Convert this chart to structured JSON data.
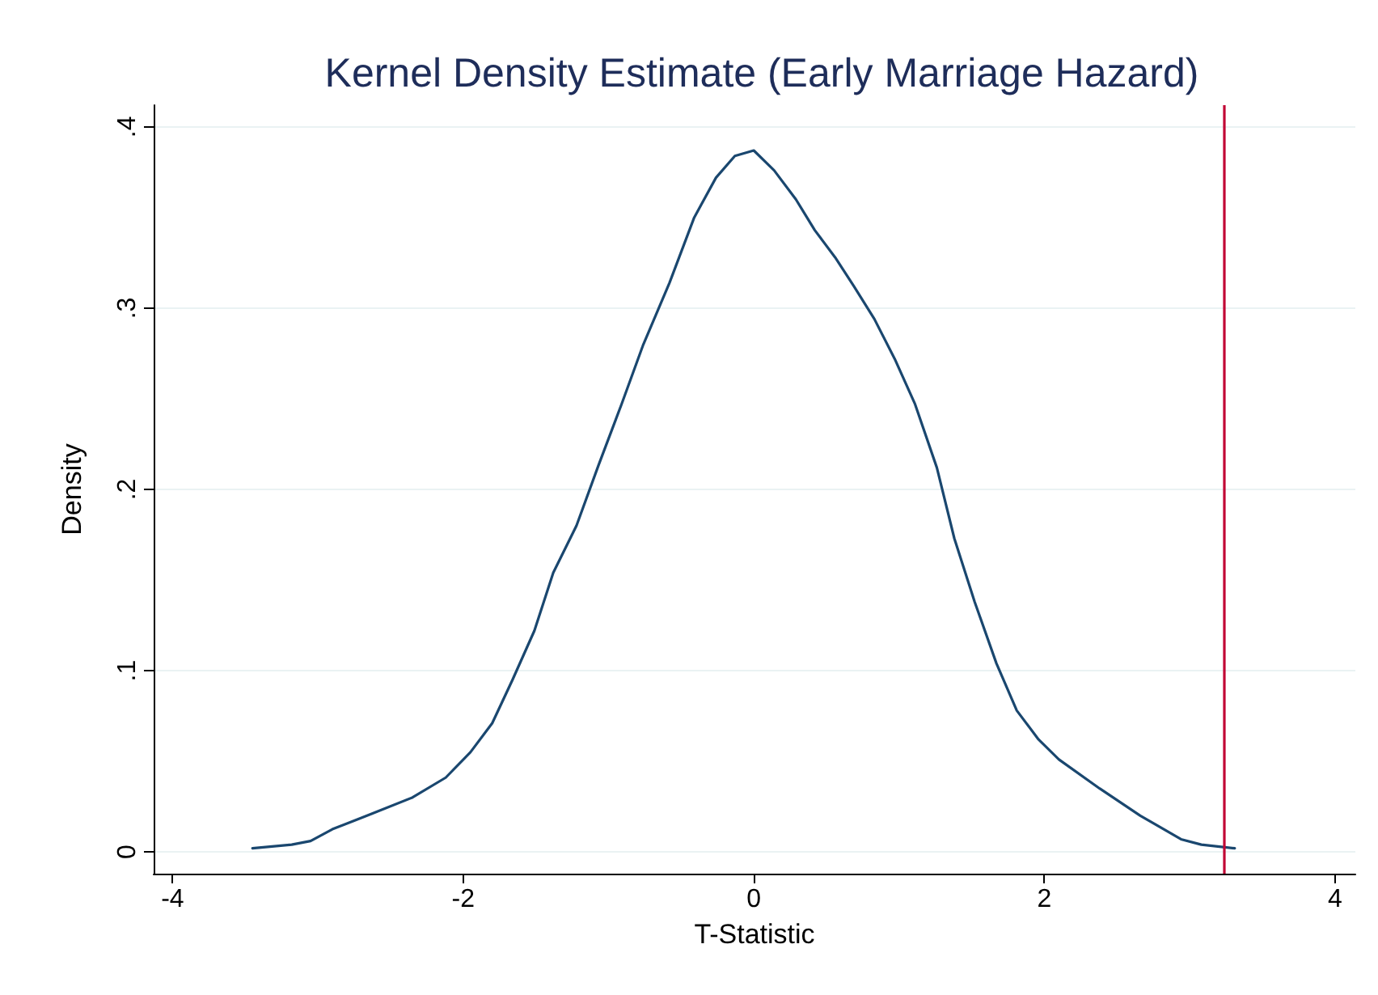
{
  "chart_data": {
    "type": "line",
    "title": "Kernel Density Estimate (Early Marriage Hazard)",
    "xlabel": "T-Statistic",
    "ylabel": "Density",
    "x": [
      -3.45,
      -3.18,
      -3.05,
      -2.9,
      -2.63,
      -2.35,
      -2.12,
      -1.95,
      -1.8,
      -1.66,
      -1.51,
      -1.38,
      -1.22,
      -1.07,
      -0.91,
      -0.76,
      -0.58,
      -0.41,
      -0.26,
      -0.13,
      0,
      0.14,
      0.29,
      0.42,
      0.56,
      0.69,
      0.83,
      0.97,
      1.11,
      1.26,
      1.38,
      1.52,
      1.67,
      1.81,
      1.96,
      2.1,
      2.38,
      2.66,
      2.94,
      3.08,
      3.31
    ],
    "series": [
      {
        "color": "#1a476f",
        "values": [
          0.002,
          0.004,
          0.006,
          0.0125,
          0.021,
          0.03,
          0.041,
          0.055,
          0.071,
          0.095,
          0.122,
          0.154,
          0.18,
          0.213,
          0.247,
          0.28,
          0.314,
          0.35,
          0.372,
          0.384,
          0.387,
          0.376,
          0.36,
          0.343,
          0.328,
          0.312,
          0.294,
          0.272,
          0.247,
          0.212,
          0.173,
          0.138,
          0.104,
          0.078,
          0.062,
          0.051,
          0.035,
          0.02,
          0.007,
          0.004,
          0.002
        ]
      }
    ],
    "xlim": [
      -4.13,
      4.14
    ],
    "xticks": [
      -4,
      -2,
      0,
      2,
      4
    ],
    "ylim": [
      -0.012,
      0.412
    ],
    "yticks": [
      0,
      {
        "value": 0.1,
        "label": ".1"
      },
      {
        "value": 0.2,
        "label": ".2"
      },
      {
        "value": 0.3,
        "label": ".3"
      },
      {
        "value": 0.4,
        "label": ".4"
      }
    ],
    "grid": "y",
    "marker": "none",
    "line_style": "solid",
    "ref_lines": [
      {
        "axis": "x",
        "value": 3.24,
        "color": "#c10534"
      }
    ]
  }
}
